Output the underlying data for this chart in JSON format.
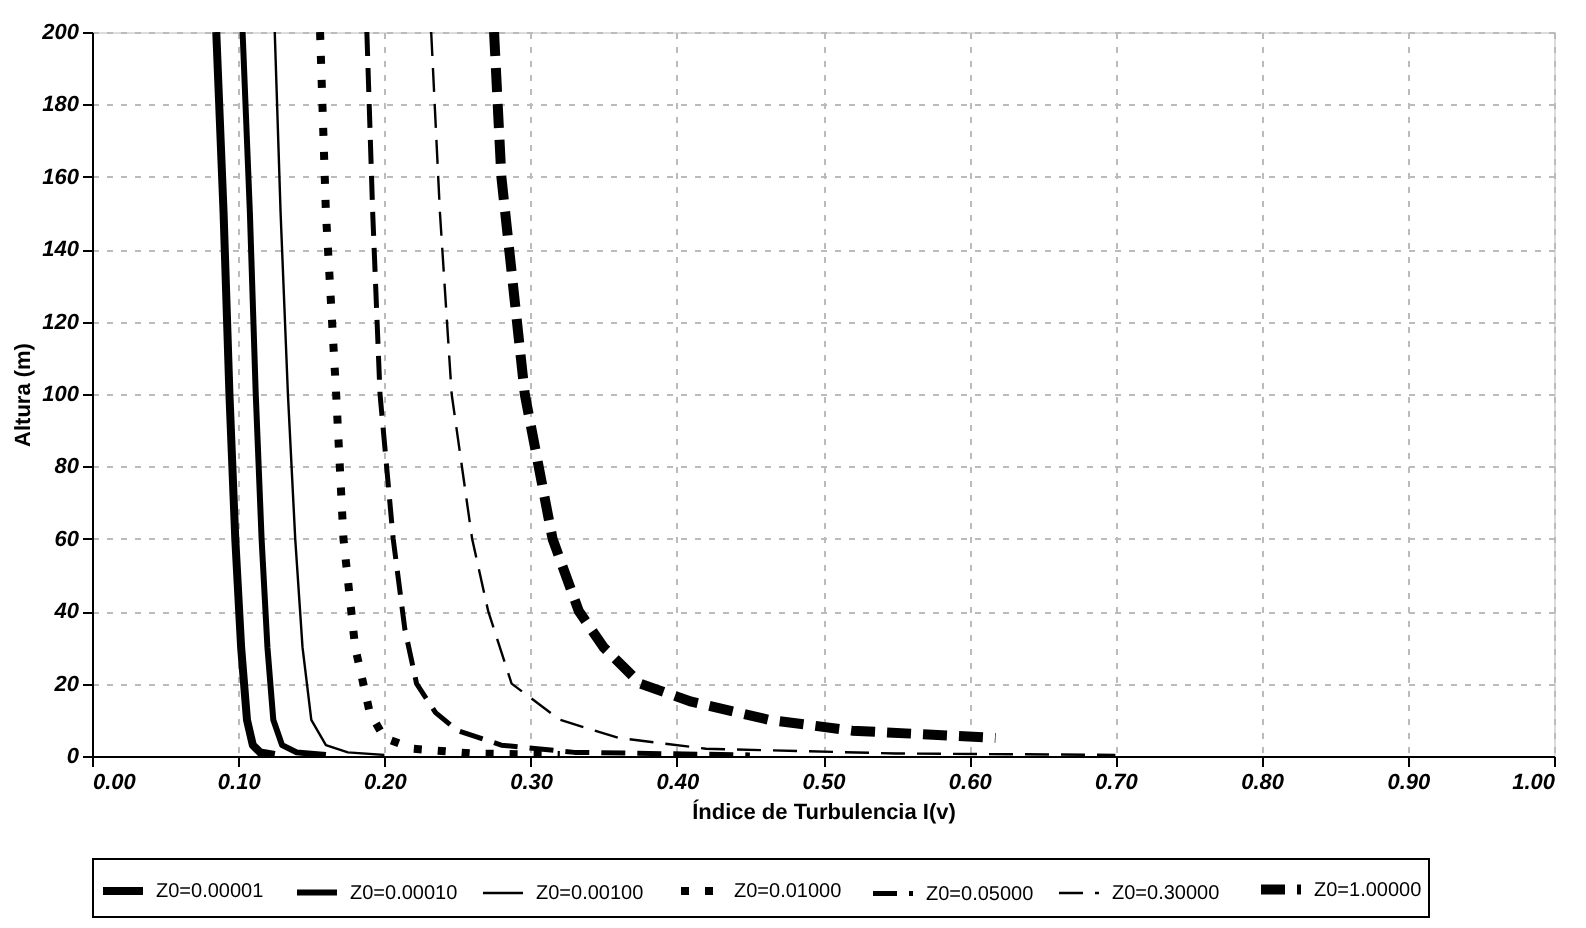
{
  "chart_data": {
    "type": "line",
    "xlabel": "Índice de Turbulencia I(v)",
    "ylabel": "Altura (m)",
    "xlim": [
      0,
      1
    ],
    "ylim": [
      0,
      200
    ],
    "xticks": [
      {
        "value": 0,
        "label": "0.00"
      },
      {
        "value": 0.1,
        "label": "0.10"
      },
      {
        "value": 0.2,
        "label": "0.20"
      },
      {
        "value": 0.3,
        "label": "0.30"
      },
      {
        "value": 0.4,
        "label": "0.40"
      },
      {
        "value": 0.5,
        "label": "0.50"
      },
      {
        "value": 0.6,
        "label": "0.60"
      },
      {
        "value": 0.7,
        "label": "0.70"
      },
      {
        "value": 0.8,
        "label": "0.80"
      },
      {
        "value": 0.9,
        "label": "0.90"
      },
      {
        "value": 1,
        "label": "1.00"
      }
    ],
    "yticks": [
      0,
      20,
      40,
      60,
      80,
      100,
      120,
      140,
      160,
      180,
      200
    ],
    "grid": true,
    "legend": "bottom",
    "marker": "none",
    "series": [
      {
        "name": "Z0=0.00001",
        "color": "#000000",
        "line_style": "solid",
        "x": [
          0.085,
          0.09,
          0.094,
          0.098,
          0.102,
          0.106,
          0.11,
          0.115,
          0.125
        ],
        "values": [
          200,
          150,
          100,
          60,
          30,
          10,
          3,
          1,
          0.3
        ]
      },
      {
        "name": "Z0=0.00010",
        "color": "#000000",
        "line_style": "solid",
        "x": [
          0.103,
          0.108,
          0.112,
          0.116,
          0.12,
          0.124,
          0.13,
          0.14,
          0.16
        ],
        "values": [
          200,
          150,
          100,
          60,
          30,
          10,
          3,
          1,
          0.3
        ]
      },
      {
        "name": "Z0=0.00100",
        "color": "#000000",
        "line_style": "solid",
        "x": [
          0.125,
          0.129,
          0.134,
          0.139,
          0.144,
          0.15,
          0.16,
          0.175,
          0.2
        ],
        "values": [
          200,
          150,
          100,
          60,
          30,
          10,
          3,
          1,
          0.3
        ]
      },
      {
        "name": "Z0=0.01000",
        "color": "#000000",
        "line_style": "dotted",
        "x": [
          0.156,
          0.16,
          0.167,
          0.172,
          0.18,
          0.19,
          0.2,
          0.22,
          0.26,
          0.32
        ],
        "values": [
          200,
          150,
          100,
          60,
          30,
          12,
          5,
          2,
          0.7,
          0.3
        ]
      },
      {
        "name": "Z0=0.05000",
        "color": "#000000",
        "line_style": "dashed",
        "x": [
          0.188,
          0.192,
          0.197,
          0.206,
          0.214,
          0.222,
          0.235,
          0.25,
          0.28,
          0.33,
          0.45
        ],
        "values": [
          200,
          150,
          100,
          60,
          35,
          20,
          12,
          7,
          3,
          1,
          0.3
        ]
      },
      {
        "name": "Z0=0.30000",
        "color": "#000000",
        "line_style": "dashed",
        "x": [
          0.232,
          0.238,
          0.246,
          0.26,
          0.271,
          0.287,
          0.32,
          0.36,
          0.42,
          0.55,
          0.7
        ],
        "values": [
          200,
          150,
          100,
          60,
          40,
          20,
          10,
          5,
          2,
          0.7,
          0.3
        ]
      },
      {
        "name": "Z0=1.00000",
        "color": "#000000",
        "line_style": "dashed",
        "x": [
          0.275,
          0.28,
          0.296,
          0.315,
          0.333,
          0.35,
          0.375,
          0.41,
          0.463,
          0.52,
          0.618
        ],
        "values": [
          200,
          160,
          100,
          60,
          40,
          30,
          20,
          15,
          10,
          7,
          5
        ]
      }
    ]
  }
}
